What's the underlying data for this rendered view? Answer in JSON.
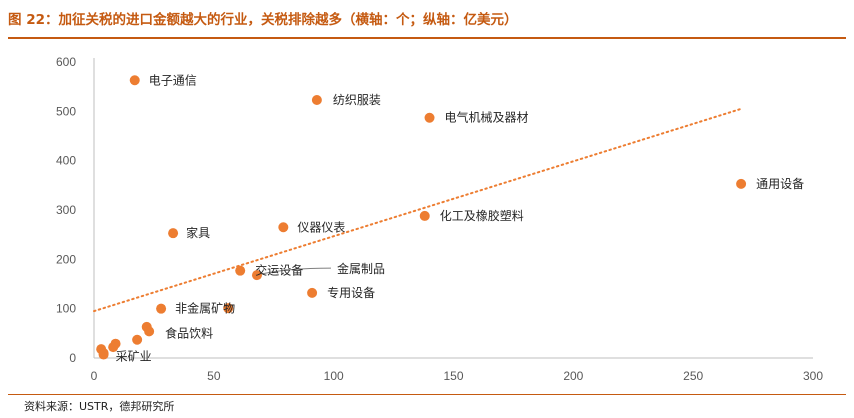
{
  "title": "图 22：加征关税的进口金额越大的行业，关税排除越多（横轴：个；纵轴：亿美元）",
  "source": "资料来源：USTR，德邦研究所",
  "colors": {
    "accent": "#c55a11",
    "point": "#ed7d31",
    "trend": "#ed7d31",
    "axis": "#bfbfbf"
  },
  "chart_data": {
    "type": "scatter",
    "title": "图 22：加征关税的进口金额越大的行业，关税排除越多（横轴：个；纵轴：亿美元）",
    "xlabel": "",
    "ylabel": "",
    "xlim": [
      0,
      300
    ],
    "ylim": [
      0,
      600
    ],
    "x_ticks": [
      0,
      50,
      100,
      150,
      200,
      250,
      300
    ],
    "y_ticks": [
      0,
      100,
      200,
      300,
      400,
      500,
      600
    ],
    "grid": false,
    "trendline": {
      "style": "dotted",
      "x": [
        0,
        270
      ],
      "y": [
        95,
        505
      ]
    },
    "points": [
      {
        "x": 17,
        "y": 563,
        "label": "电子通信"
      },
      {
        "x": 93,
        "y": 523,
        "label": "纺织服装"
      },
      {
        "x": 140,
        "y": 487,
        "label": "电气机械及器材"
      },
      {
        "x": 270,
        "y": 353,
        "label": "通用设备"
      },
      {
        "x": 138,
        "y": 288,
        "label": "化工及橡胶塑料"
      },
      {
        "x": 79,
        "y": 265,
        "label": "仪器仪表"
      },
      {
        "x": 33,
        "y": 253,
        "label": "家具"
      },
      {
        "x": 61,
        "y": 177,
        "label": "交运设备"
      },
      {
        "x": 68,
        "y": 168,
        "label": "金属制品"
      },
      {
        "x": 91,
        "y": 132,
        "label": "专用设备"
      },
      {
        "x": 28,
        "y": 100,
        "label": "非金属矿物"
      },
      {
        "x": 56,
        "y": 101,
        "label": ""
      },
      {
        "x": 22,
        "y": 63,
        "label": ""
      },
      {
        "x": 23,
        "y": 54,
        "label": "食品饮料"
      },
      {
        "x": 18,
        "y": 37,
        "label": ""
      },
      {
        "x": 9,
        "y": 29,
        "label": ""
      },
      {
        "x": 8,
        "y": 22,
        "label": ""
      },
      {
        "x": 3,
        "y": 18,
        "label": ""
      },
      {
        "x": 4,
        "y": 10,
        "label": ""
      },
      {
        "x": 4,
        "y": 7,
        "label": "采矿业"
      }
    ]
  }
}
